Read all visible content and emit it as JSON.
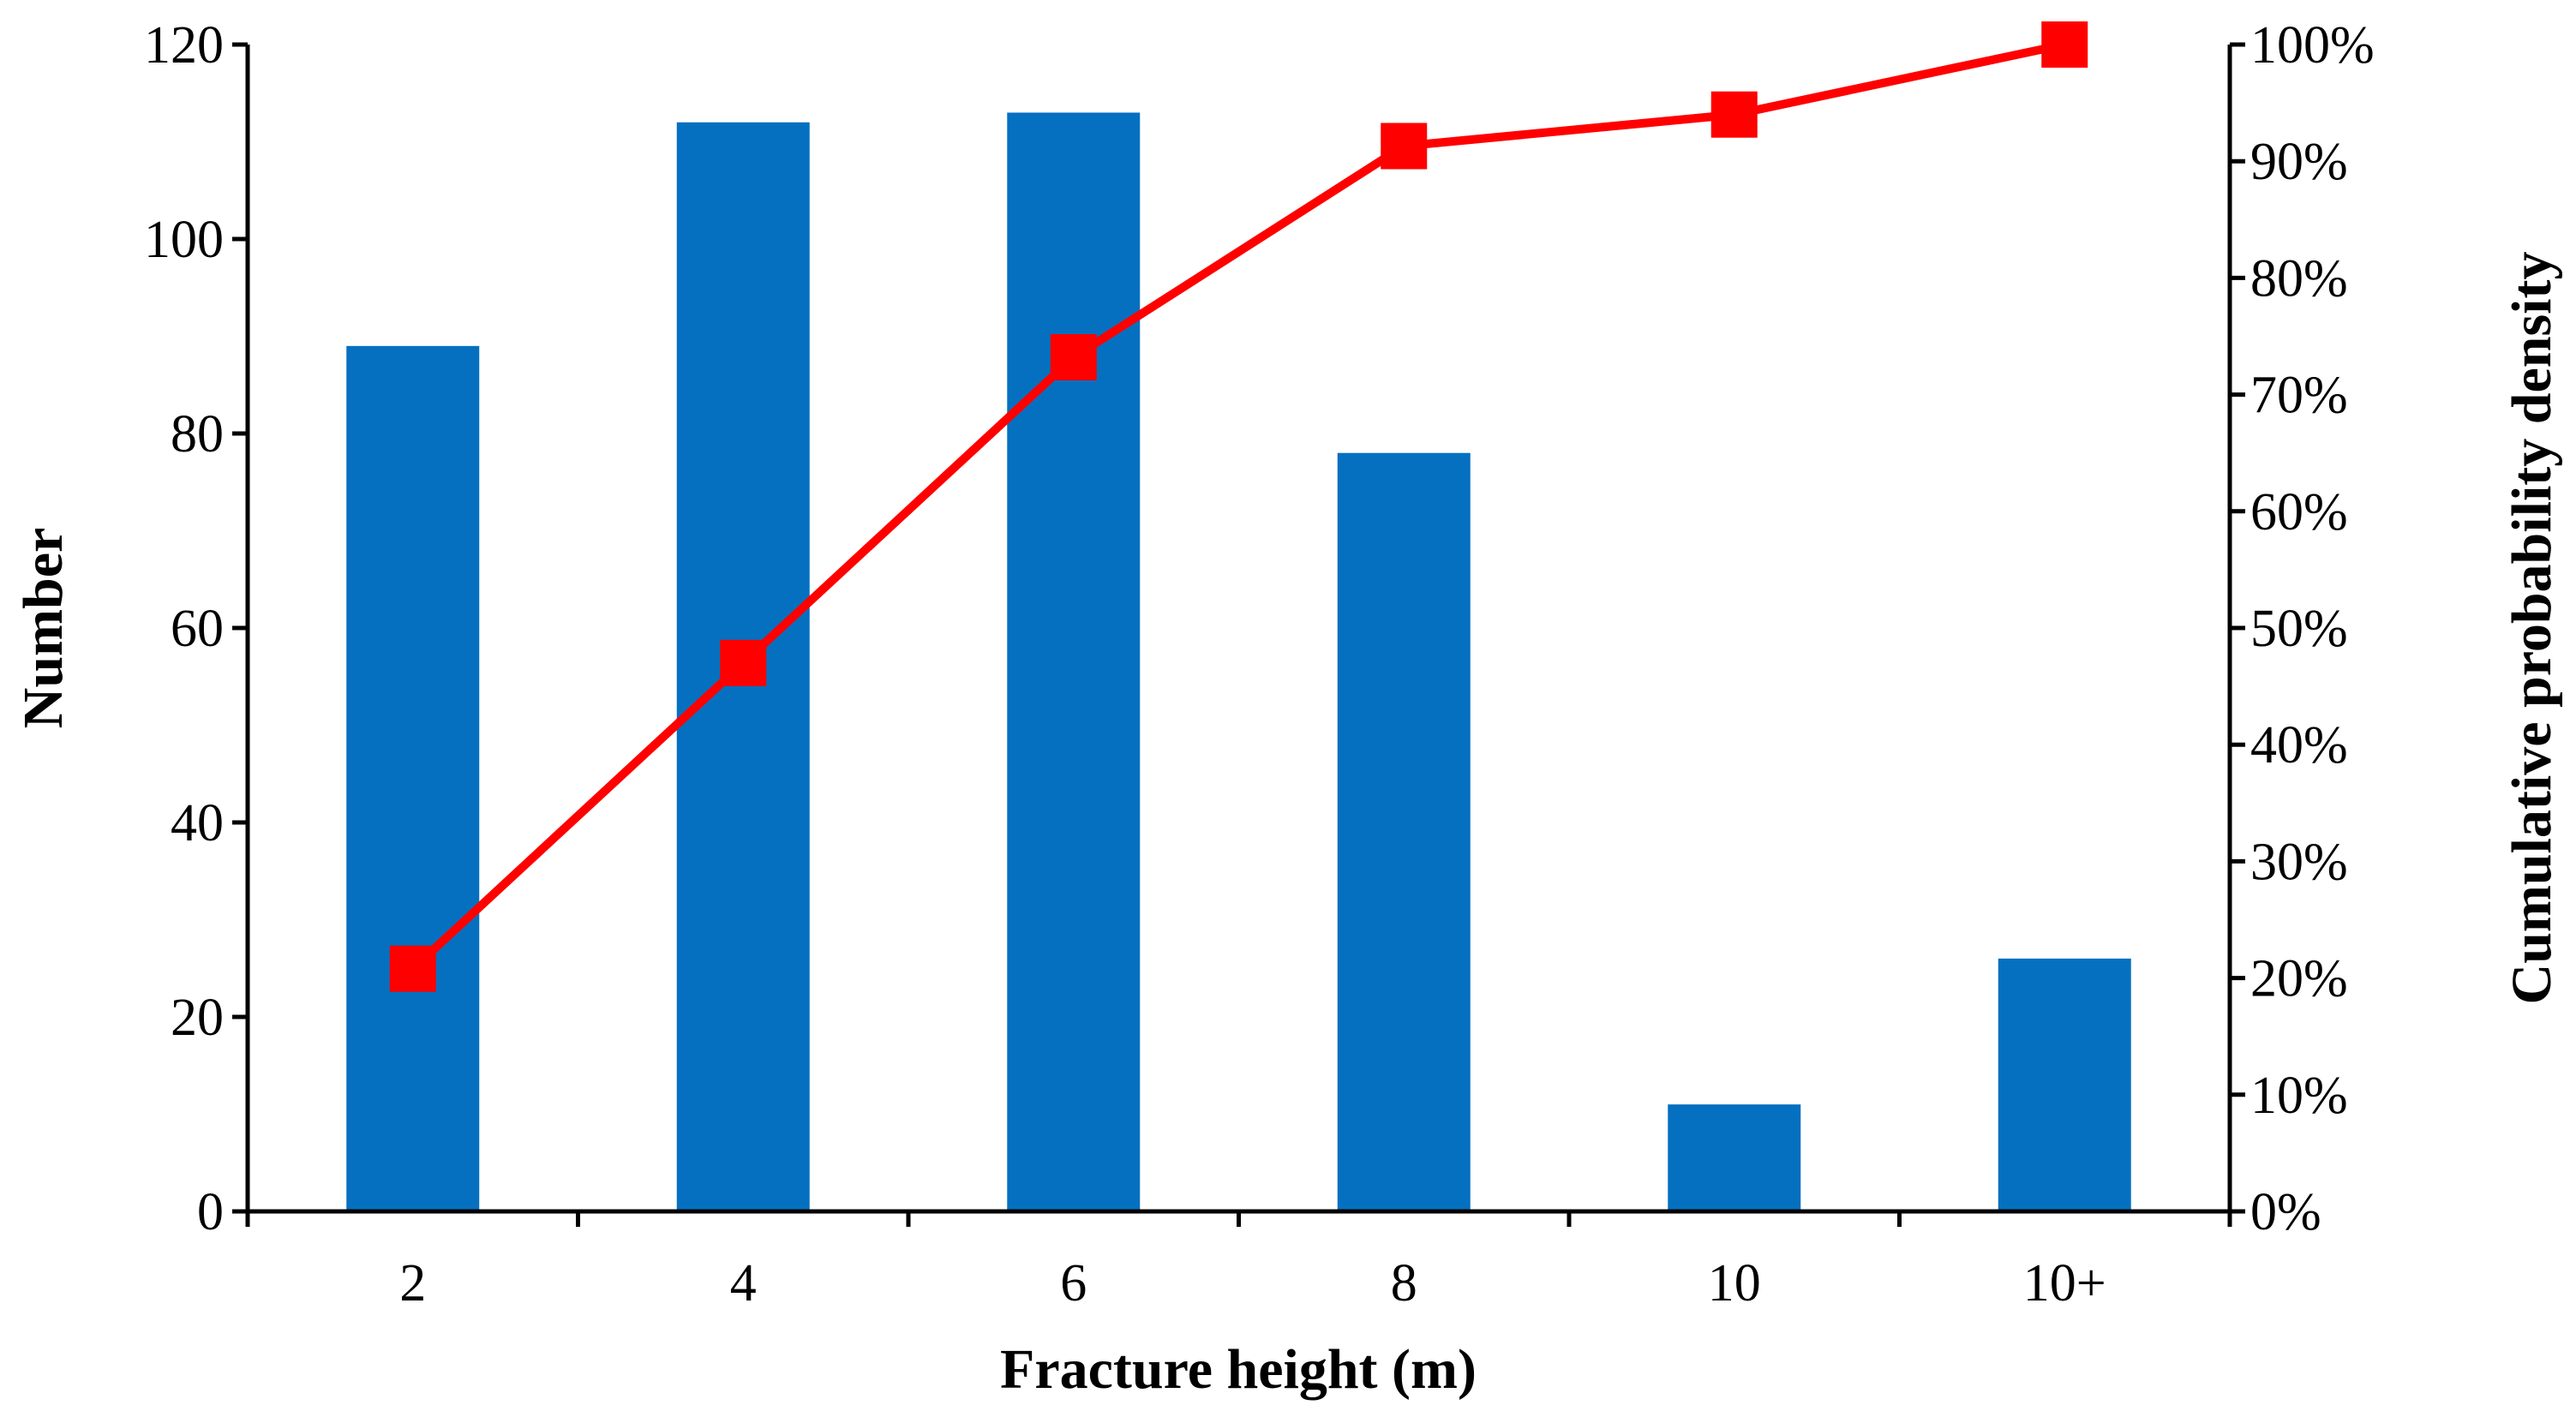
{
  "chart_data": {
    "type": "bar",
    "title": "",
    "xlabel": "Fracture height (m)",
    "ylabel": "Number",
    "ylabel_right": "Cumulative probability density",
    "categories": [
      "2",
      "4",
      "6",
      "8",
      "10",
      "10+"
    ],
    "series": [
      {
        "type": "bar",
        "axis": "left",
        "color": "#0570C0",
        "values": [
          89,
          112,
          113,
          78,
          11,
          26
        ]
      },
      {
        "type": "line",
        "axis": "right",
        "color": "#FF0000",
        "marker": "square",
        "values": [
          20.8,
          47,
          73.2,
          91.3,
          94,
          100
        ]
      }
    ],
    "y_left": {
      "lim": [
        0,
        120
      ],
      "ticks": [
        "0",
        "20",
        "40",
        "60",
        "80",
        "100",
        "120"
      ]
    },
    "y_right": {
      "lim": [
        0,
        100
      ],
      "ticks": [
        "0%",
        "10%",
        "20%",
        "30%",
        "40%",
        "50%",
        "60%",
        "70%",
        "80%",
        "90%",
        "100%"
      ]
    },
    "grid": false,
    "legend": "none"
  }
}
